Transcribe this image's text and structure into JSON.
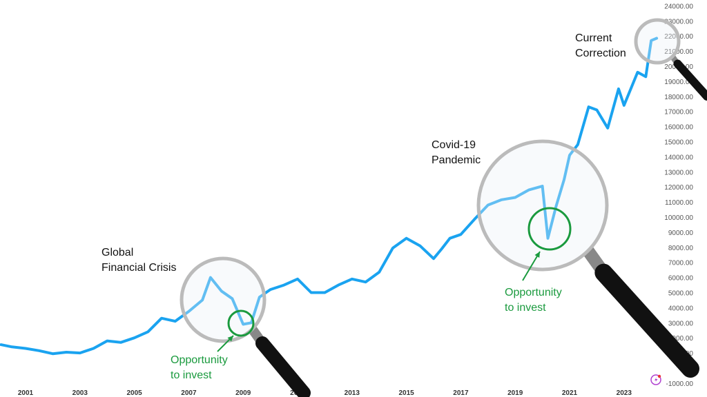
{
  "chart_data": {
    "type": "line",
    "title": "",
    "xlabel": "",
    "ylabel": "",
    "xlim": [
      2000.1,
      2025.0
    ],
    "ylim": [
      -1000,
      24000
    ],
    "grid": false,
    "line_color": "#1aa3f0",
    "x_ticks": [
      "2001",
      "2003",
      "2005",
      "2007",
      "2009",
      "2011",
      "2013",
      "2015",
      "2017",
      "2019",
      "2021",
      "2023"
    ],
    "y_ticks": [
      "24000.00",
      "23000.00",
      "22000.00",
      "21000.00",
      "20000.00",
      "19000.00",
      "18000.00",
      "17000.00",
      "16000.00",
      "15000.00",
      "14000.00",
      "13000.00",
      "12000.00",
      "11000.00",
      "10000.00",
      "9000.00",
      "8000.00",
      "7000.00",
      "6000.00",
      "5000.00",
      "4000.00",
      "3000.00",
      "2000.00",
      "1000.00",
      "-1000.00"
    ],
    "points": [
      [
        2000.1,
        1550
      ],
      [
        2000.5,
        1400
      ],
      [
        2001,
        1300
      ],
      [
        2001.5,
        1150
      ],
      [
        2002,
        950
      ],
      [
        2002.5,
        1050
      ],
      [
        2003,
        1000
      ],
      [
        2003.5,
        1300
      ],
      [
        2004,
        1800
      ],
      [
        2004.5,
        1700
      ],
      [
        2005,
        2000
      ],
      [
        2005.5,
        2400
      ],
      [
        2006,
        3300
      ],
      [
        2006.5,
        3100
      ],
      [
        2007,
        3750
      ],
      [
        2007.5,
        4500
      ],
      [
        2007.8,
        6000
      ],
      [
        2008.2,
        5100
      ],
      [
        2008.6,
        4600
      ],
      [
        2009,
        2900
      ],
      [
        2009.3,
        3000
      ],
      [
        2009.6,
        4700
      ],
      [
        2010,
        5200
      ],
      [
        2010.5,
        5500
      ],
      [
        2011,
        5900
      ],
      [
        2011.5,
        5000
      ],
      [
        2012,
        5000
      ],
      [
        2012.5,
        5500
      ],
      [
        2013,
        5900
      ],
      [
        2013.5,
        5700
      ],
      [
        2014,
        6350
      ],
      [
        2014.5,
        7950
      ],
      [
        2015,
        8600
      ],
      [
        2015.5,
        8100
      ],
      [
        2016,
        7250
      ],
      [
        2016.3,
        7900
      ],
      [
        2016.6,
        8600
      ],
      [
        2017,
        8850
      ],
      [
        2017.5,
        9850
      ],
      [
        2018,
        10800
      ],
      [
        2018.5,
        11150
      ],
      [
        2019,
        11300
      ],
      [
        2019.5,
        11800
      ],
      [
        2020,
        12050
      ],
      [
        2020.2,
        8600
      ],
      [
        2020.5,
        10700
      ],
      [
        2020.8,
        12500
      ],
      [
        2021,
        14100
      ],
      [
        2021.3,
        14800
      ],
      [
        2021.7,
        17300
      ],
      [
        2022,
        17100
      ],
      [
        2022.4,
        15900
      ],
      [
        2022.8,
        18500
      ],
      [
        2023,
        17400
      ],
      [
        2023.5,
        19600
      ],
      [
        2023.8,
        19300
      ],
      [
        2024,
        21700
      ],
      [
        2024.2,
        21850
      ]
    ],
    "annotations": [
      {
        "text_lines": [
          "Global",
          "Financial Crisis"
        ],
        "color": "#111111"
      },
      {
        "text_lines": [
          "Covid-19",
          "Pandemic"
        ],
        "color": "#111111"
      },
      {
        "text_lines": [
          "Current",
          "Correction"
        ],
        "color": "#111111"
      },
      {
        "text_lines": [
          "Opportunity",
          "to invest"
        ],
        "color": "#1a9a3e"
      },
      {
        "text_lines": [
          "Opportunity",
          "to invest"
        ],
        "color": "#1a9a3e"
      }
    ]
  },
  "icons": {
    "badge": "lightning-bolt-icon"
  }
}
